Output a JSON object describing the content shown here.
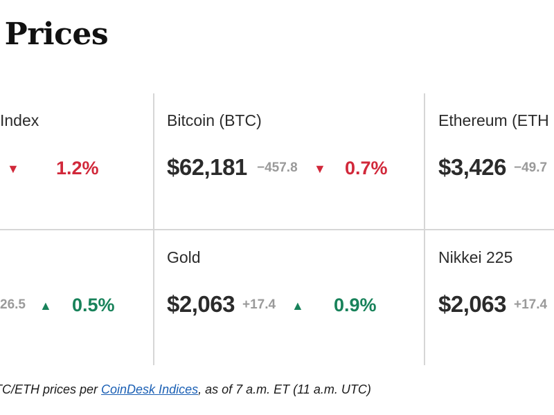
{
  "heading": "t Prices",
  "cells": [
    {
      "name": "Index",
      "price": "",
      "change": "",
      "direction": "down",
      "pct": "1.2%"
    },
    {
      "name": "Bitcoin (BTC)",
      "price": "$62,181",
      "change": "−457.8",
      "direction": "down",
      "pct": "0.7%"
    },
    {
      "name": "Ethereum (ETH",
      "price": "$3,426",
      "change": "−49.7",
      "direction": "down",
      "pct": ""
    },
    {
      "name": "",
      "price": "",
      "change": "26.5",
      "direction": "up",
      "pct": "0.5%"
    },
    {
      "name": "Gold",
      "price": "$2,063",
      "change": "+17.4",
      "direction": "up",
      "pct": "0.9%"
    },
    {
      "name": "Nikkei 225",
      "price": "$2,063",
      "change": "+17.4",
      "direction": "up",
      "pct": ""
    }
  ],
  "footnote": {
    "prefix": "TC/ETH prices per ",
    "link": "CoinDesk Indices",
    "suffix": ", as of 7 a.m. ET (11 a.m. UTC)"
  },
  "colors": {
    "down": "#d1283a",
    "up": "#18825a",
    "muted": "#9a9a9a"
  },
  "icons": {
    "down": "triangle-down-icon",
    "up": "triangle-up-icon"
  }
}
